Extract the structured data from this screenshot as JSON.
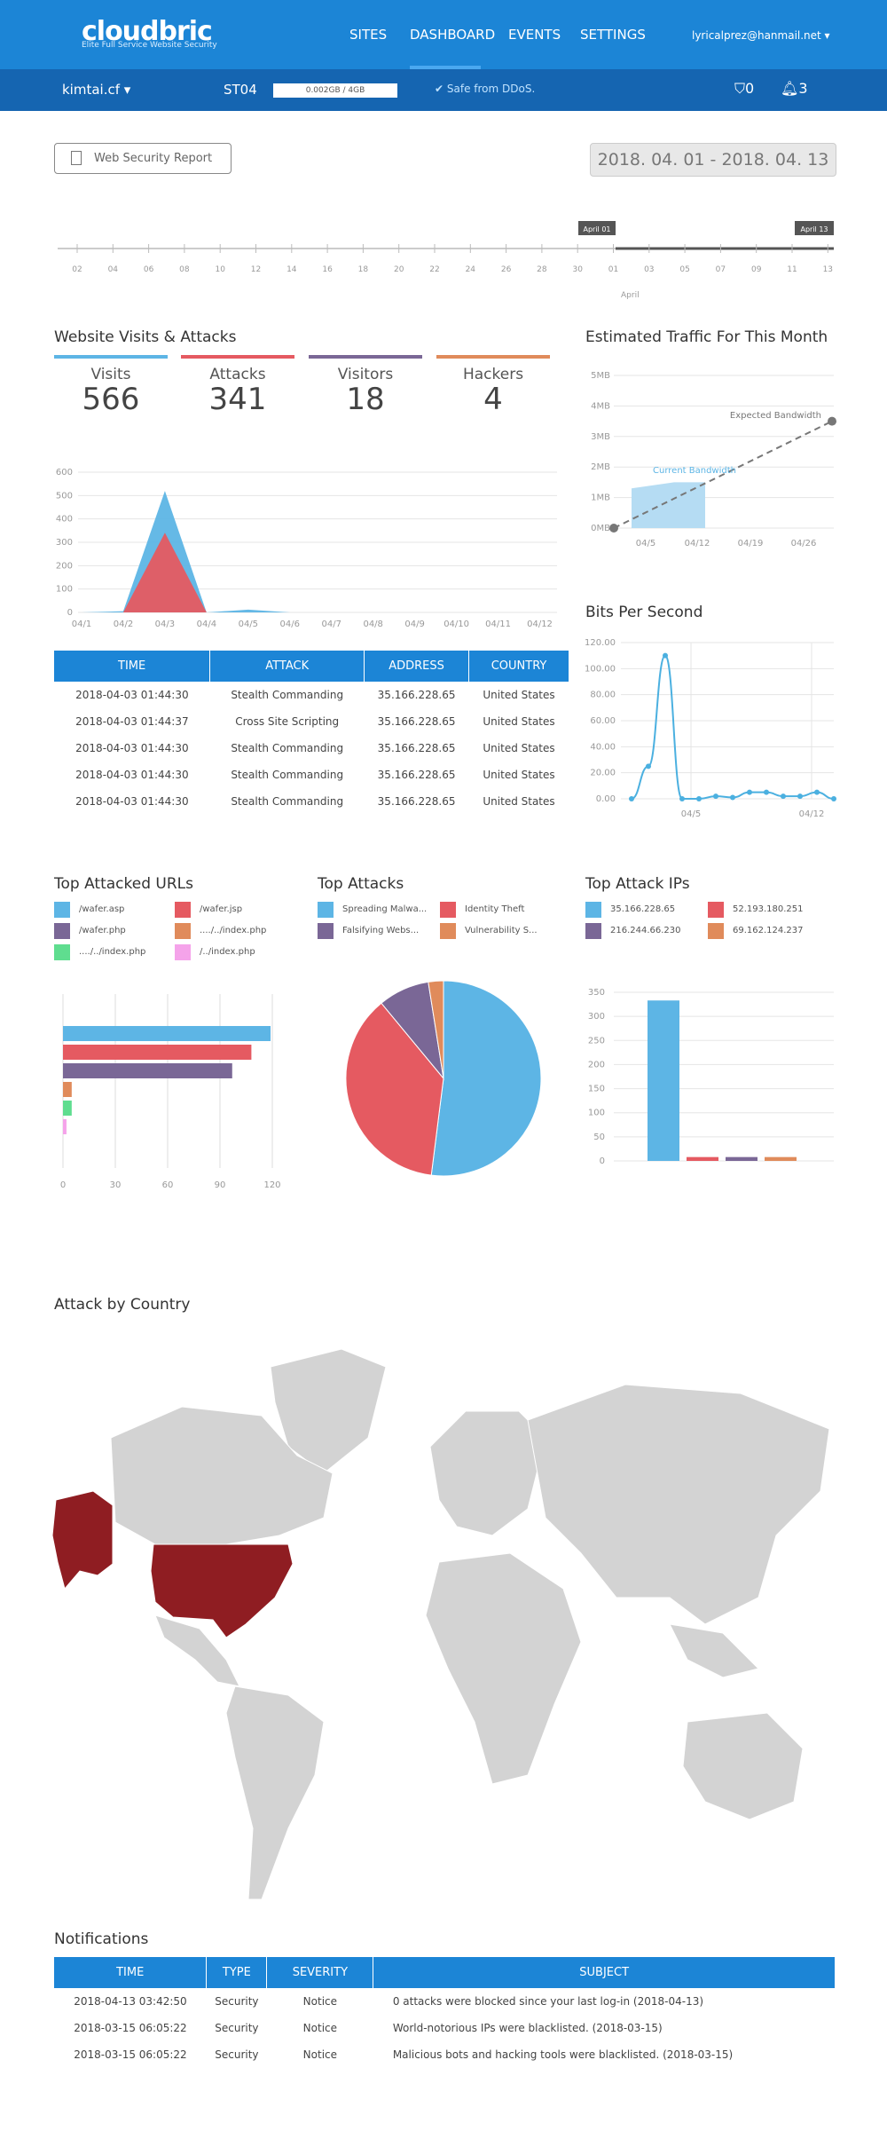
{
  "header": {
    "logo": "cloudbric",
    "tagline": "Elite Full Service Website Security",
    "nav": [
      "SITES",
      "DASHBOARD",
      "EVENTS",
      "SETTINGS"
    ],
    "user": "lyricalprez@hanmail.net ▾"
  },
  "subbar": {
    "site": "kimtai.cf ▾",
    "plan": "ST04",
    "storage": "0.002GB / 4GB",
    "ddos": "Safe from DDoS.",
    "shield_count": "0",
    "bell_count": "3"
  },
  "report_button": "Web Security Report",
  "date_range": "2018. 04. 01 - 2018. 04. 13",
  "timeline": {
    "ticks": [
      "02",
      "04",
      "06",
      "08",
      "10",
      "12",
      "14",
      "16",
      "18",
      "20",
      "22",
      "24",
      "26",
      "28",
      "30",
      "01",
      "03",
      "05",
      "07",
      "09",
      "11",
      "13"
    ],
    "start_flag": "April 01",
    "end_flag": "April 13",
    "month_label": "April"
  },
  "visits_section": {
    "title": "Website Visits & Attacks",
    "stats": [
      {
        "label": "Visits",
        "value": "566",
        "color": "#5db5e5"
      },
      {
        "label": "Attacks",
        "value": "341",
        "color": "#e55a61"
      },
      {
        "label": "Visitors",
        "value": "18",
        "color": "#7a6796"
      },
      {
        "label": "Hackers",
        "value": "4",
        "color": "#e08b5b"
      }
    ]
  },
  "traffic_title": "Estimated Traffic For This Month",
  "bps_title": "Bits Per Second",
  "events_table": {
    "headers": [
      "TIME",
      "ATTACK",
      "ADDRESS",
      "COUNTRY"
    ],
    "rows": [
      [
        "2018-04-03 01:44:30",
        "Stealth Commanding",
        "35.166.228.65",
        "United States"
      ],
      [
        "2018-04-03 01:44:37",
        "Cross Site Scripting",
        "35.166.228.65",
        "United States"
      ],
      [
        "2018-04-03 01:44:30",
        "Stealth Commanding",
        "35.166.228.65",
        "United States"
      ],
      [
        "2018-04-03 01:44:30",
        "Stealth Commanding",
        "35.166.228.65",
        "United States"
      ],
      [
        "2018-04-03 01:44:30",
        "Stealth Commanding",
        "35.166.228.65",
        "United States"
      ]
    ]
  },
  "top_urls": {
    "title": "Top Attacked URLs",
    "legend": [
      {
        "label": "/wafer.asp",
        "color": "#5db5e5"
      },
      {
        "label": "/wafer.jsp",
        "color": "#e55a61"
      },
      {
        "label": "/wafer.php",
        "color": "#7a6796"
      },
      {
        "label": "..../../index.php",
        "color": "#e08b5b"
      },
      {
        "label": "..../../index.php",
        "color": "#5fdd8f"
      },
      {
        "label": "/../index.php",
        "color": "#f5a3ea"
      }
    ]
  },
  "top_attacks": {
    "title": "Top Attacks",
    "legend": [
      {
        "label": "Spreading Malwa...",
        "color": "#5db5e5"
      },
      {
        "label": "Identity Theft",
        "color": "#e55a61"
      },
      {
        "label": "Falsifying Webs...",
        "color": "#7a6796"
      },
      {
        "label": "Vulnerability S...",
        "color": "#e08b5b"
      }
    ]
  },
  "top_ips": {
    "title": "Top Attack IPs",
    "legend": [
      {
        "label": "35.166.228.65",
        "color": "#5db5e5"
      },
      {
        "label": "52.193.180.251",
        "color": "#e55a61"
      },
      {
        "label": "216.244.66.230",
        "color": "#7a6796"
      },
      {
        "label": "69.162.124.237",
        "color": "#e08b5b"
      }
    ]
  },
  "country_title": "Attack by Country",
  "notifications": {
    "title": "Notifications",
    "headers": [
      "TIME",
      "TYPE",
      "SEVERITY",
      "SUBJECT"
    ],
    "rows": [
      [
        "2018-04-13 03:42:50",
        "Security",
        "Notice",
        "0 attacks were blocked since your last log-in (2018-04-13)"
      ],
      [
        "2018-03-15 06:05:22",
        "Security",
        "Notice",
        "World-notorious IPs were blacklisted. (2018-03-15)"
      ],
      [
        "2018-03-15 06:05:22",
        "Security",
        "Notice",
        "Malicious bots and hacking tools were blacklisted. (2018-03-15)"
      ]
    ]
  },
  "chart_data": [
    {
      "type": "area",
      "title": "Website Visits & Attacks",
      "categories": [
        "04/1",
        "04/2",
        "04/3",
        "04/4",
        "04/5",
        "04/6",
        "04/7",
        "04/8",
        "04/9",
        "04/10",
        "04/11",
        "04/12"
      ],
      "ylim": [
        0,
        600
      ],
      "yticks": [
        "0",
        "100",
        "200",
        "300",
        "400",
        "500",
        "600"
      ],
      "series": [
        {
          "name": "Visits",
          "color": "#5db5e5",
          "values": [
            0,
            5,
            520,
            0,
            12,
            0,
            0,
            0,
            0,
            0,
            0,
            0
          ]
        },
        {
          "name": "Attacks",
          "color": "#e55a61",
          "values": [
            0,
            0,
            341,
            0,
            0,
            0,
            0,
            0,
            0,
            0,
            0,
            0
          ]
        }
      ]
    },
    {
      "type": "area",
      "title": "Estimated Traffic For This Month",
      "yticks": [
        "0MB",
        "1MB",
        "2MB",
        "3MB",
        "4MB",
        "5MB"
      ],
      "xticks": [
        "04/5",
        "04/12",
        "04/19",
        "04/26"
      ],
      "ylim": [
        0,
        5
      ],
      "series": [
        {
          "name": "Current Bandwidth",
          "values": [
            1.3,
            1.5,
            1.5
          ]
        },
        {
          "name": "Expected Bandwidth",
          "values": [
            0,
            3.5
          ]
        }
      ]
    },
    {
      "type": "line",
      "title": "Bits Per Second",
      "yticks": [
        "0.00",
        "20.00",
        "40.00",
        "60.00",
        "80.00",
        "100.00",
        "120.00"
      ],
      "xticks": [
        "04/5",
        "04/12"
      ],
      "ylim": [
        0,
        120
      ],
      "values": [
        0,
        25,
        110,
        0,
        0,
        2,
        1,
        5,
        5,
        2,
        2,
        5,
        0
      ]
    },
    {
      "type": "bar",
      "title": "Top Attacked URLs",
      "orientation": "horizontal",
      "categories": [
        "/wafer.asp",
        "/wafer.jsp",
        "/wafer.php",
        "..../../index.php",
        "..../../index.php",
        "/../index.php"
      ],
      "values": [
        119,
        108,
        97,
        5,
        5,
        2
      ],
      "xticks": [
        "0",
        "30",
        "60",
        "90",
        "120"
      ],
      "xlim": [
        0,
        120
      ]
    },
    {
      "type": "pie",
      "title": "Top Attacks",
      "categories": [
        "Spreading Malwa...",
        "Identity Theft",
        "Falsifying Webs...",
        "Vulnerability S..."
      ],
      "values": [
        52,
        37,
        8.5,
        2.5
      ]
    },
    {
      "type": "bar",
      "title": "Top Attack IPs",
      "categories": [
        "35.166.228.65",
        "52.193.180.251",
        "216.244.66.230",
        "69.162.124.237"
      ],
      "values": [
        333,
        8,
        8,
        8
      ],
      "yticks": [
        "0",
        "50",
        "100",
        "150",
        "200",
        "250",
        "300",
        "350"
      ],
      "ylim": [
        0,
        350
      ]
    }
  ]
}
